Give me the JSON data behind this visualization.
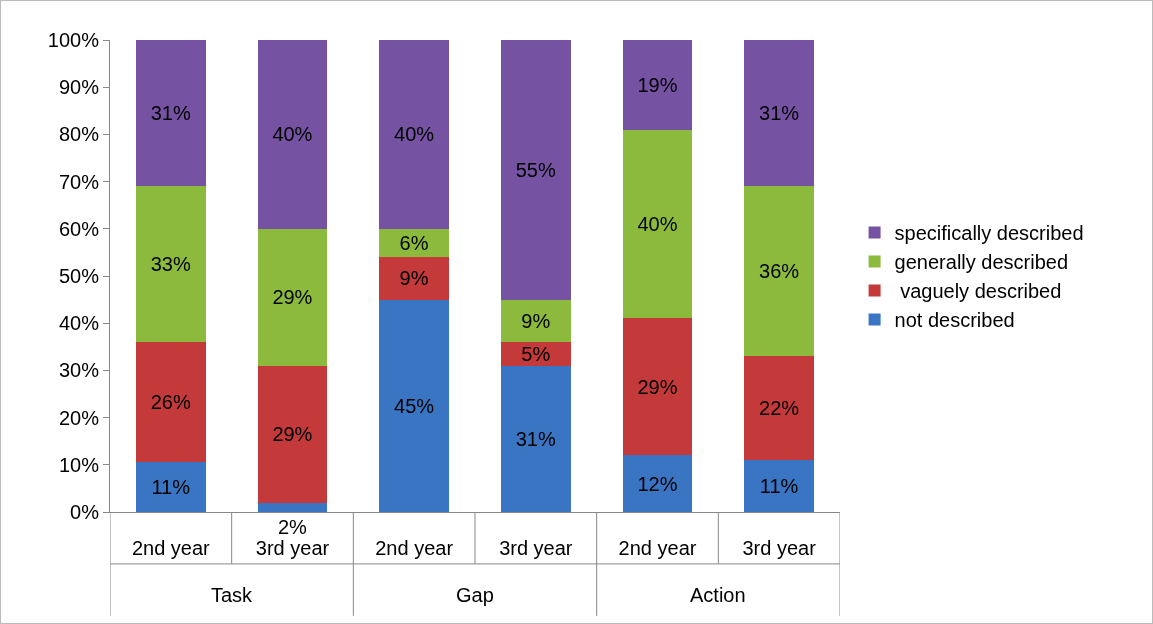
{
  "chart_data": {
    "type": "bar",
    "stacked": true,
    "categories": [
      "2nd year",
      "3rd year",
      "2nd year",
      "3rd year",
      "2nd year",
      "3rd year"
    ],
    "series": [
      {
        "name": "not described",
        "color": "#3a75c4",
        "values": [
          10.5,
          2,
          45,
          31,
          12,
          11
        ],
        "value_labels": [
          "11%",
          "2%",
          "45%",
          "31%",
          "12%",
          "11%"
        ]
      },
      {
        "name": " vaguely described",
        "color": "#c43a3a",
        "values": [
          25.5,
          29,
          9,
          5,
          29,
          22
        ],
        "value_labels": [
          "26%",
          "29%",
          "9%",
          "5%",
          "29%",
          "22%"
        ]
      },
      {
        "name": "generally described",
        "color": "#8cba3c",
        "values": [
          33,
          29,
          6,
          9,
          40,
          36
        ],
        "value_labels": [
          "33%",
          "29%",
          "6%",
          "9%",
          "40%",
          "36%"
        ]
      },
      {
        "name": "specifically described",
        "color": "#7652a2",
        "values": [
          31,
          40,
          40,
          55,
          19,
          31
        ],
        "value_labels": [
          "31%",
          "40%",
          "40%",
          "55%",
          "19%",
          "31%"
        ]
      }
    ],
    "annotations": [
      "Task",
      "Gap",
      "Action"
    ],
    "ylim": [
      0,
      100
    ],
    "yticks": [
      {
        "value": 0,
        "label": "0%"
      },
      {
        "value": 10,
        "label": "10%"
      },
      {
        "value": 20,
        "label": "20%"
      },
      {
        "value": 30,
        "label": "30%"
      },
      {
        "value": 40,
        "label": "40%"
      },
      {
        "value": 50,
        "label": "50%"
      },
      {
        "value": 60,
        "label": "60%"
      },
      {
        "value": 70,
        "label": "70%"
      },
      {
        "value": 80,
        "label": "80%"
      },
      {
        "value": 90,
        "label": "90%"
      },
      {
        "value": 100,
        "label": "100%"
      }
    ],
    "grid": false,
    "legend": "right"
  }
}
